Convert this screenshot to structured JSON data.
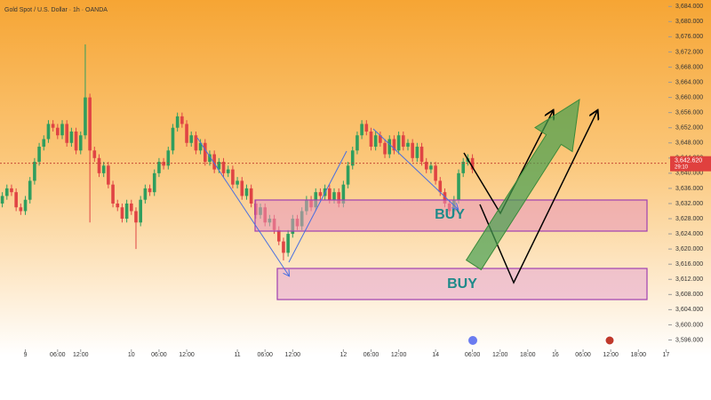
{
  "chart_data": {
    "type": "candlestick",
    "title": "Gold Spot / U.S. Dollar · 1h · OANDA",
    "annotations": {
      "current_price": "3,642.620",
      "countdown": "29:10",
      "buy_upper": "BUY",
      "buy_lower": "BUY"
    },
    "current_price": 3642.62,
    "up_color": "#2f9e5e",
    "down_color": "#e04444",
    "open": [
      3632,
      3634,
      3636,
      3635,
      3631,
      3630,
      3633,
      3638,
      3643,
      3647,
      3649,
      3653,
      3652,
      3650,
      3653,
      3648,
      3651,
      3646,
      3650,
      3660,
      3646,
      3644,
      3640,
      3642,
      3637,
      3632,
      3631,
      3628,
      3632,
      3630,
      3627,
      3633,
      3636,
      3635,
      3640,
      3643,
      3642,
      3646,
      3652,
      3655,
      3653,
      3648,
      3650,
      3646,
      3648,
      3643,
      3645,
      3641,
      3643,
      3640,
      3641,
      3637,
      3638,
      3634,
      3636,
      3632,
      3629,
      3631,
      3627,
      3628,
      3625,
      3622,
      3619,
      3624,
      3628,
      3626,
      3630,
      3633,
      3631,
      3635,
      3634,
      3636,
      3633,
      3635,
      3632,
      3637,
      3642,
      3646,
      3650,
      3653,
      3651,
      3647,
      3650,
      3648,
      3645,
      3649,
      3646,
      3650,
      3647,
      3648,
      3644,
      3647,
      3643,
      3641,
      3642,
      3638,
      3635,
      3632,
      3630,
      3633,
      3640,
      3643,
      3644
    ],
    "high": [
      3635,
      3637,
      3637,
      3636,
      3632,
      3634,
      3639,
      3644,
      3648,
      3650,
      3654,
      3654,
      3653,
      3654,
      3654,
      3652,
      3652,
      3651,
      3674,
      3661,
      3647,
      3645,
      3643,
      3643,
      3638,
      3633,
      3632,
      3633,
      3633,
      3631,
      3634,
      3637,
      3637,
      3641,
      3644,
      3644,
      3647,
      3653,
      3656,
      3656,
      3654,
      3651,
      3651,
      3649,
      3649,
      3646,
      3646,
      3644,
      3644,
      3642,
      3642,
      3639,
      3639,
      3637,
      3637,
      3633,
      3632,
      3632,
      3629,
      3629,
      3626,
      3623,
      3625,
      3629,
      3629,
      3631,
      3634,
      3634,
      3636,
      3636,
      3637,
      3637,
      3636,
      3636,
      3638,
      3643,
      3647,
      3651,
      3654,
      3654,
      3652,
      3651,
      3651,
      3649,
      3650,
      3650,
      3651,
      3651,
      3649,
      3649,
      3648,
      3648,
      3644,
      3643,
      3643,
      3639,
      3636,
      3633,
      3634,
      3641,
      3644,
      3645,
      3645
    ],
    "low": [
      3631,
      3633,
      3634,
      3630,
      3629,
      3629,
      3632,
      3637,
      3642,
      3646,
      3648,
      3651,
      3649,
      3649,
      3647,
      3647,
      3645,
      3645,
      3649,
      3627,
      3643,
      3639,
      3639,
      3636,
      3631,
      3630,
      3627,
      3627,
      3629,
      3620,
      3626,
      3632,
      3634,
      3634,
      3639,
      3641,
      3641,
      3645,
      3651,
      3652,
      3647,
      3647,
      3645,
      3645,
      3642,
      3642,
      3640,
      3640,
      3639,
      3639,
      3636,
      3636,
      3633,
      3633,
      3631,
      3628,
      3628,
      3626,
      3626,
      3624,
      3621,
      3617,
      3618,
      3623,
      3625,
      3625,
      3629,
      3630,
      3630,
      3633,
      3633,
      3632,
      3632,
      3631,
      3631,
      3636,
      3641,
      3645,
      3649,
      3650,
      3646,
      3646,
      3647,
      3644,
      3644,
      3645,
      3645,
      3646,
      3646,
      3643,
      3643,
      3642,
      3640,
      3640,
      3637,
      3634,
      3631,
      3629,
      3629,
      3632,
      3639,
      3642,
      3640
    ],
    "close": [
      3634,
      3636,
      3635,
      3631,
      3630,
      3633,
      3638,
      3643,
      3647,
      3649,
      3653,
      3652,
      3650,
      3653,
      3648,
      3651,
      3646,
      3650,
      3660,
      3646,
      3644,
      3640,
      3642,
      3637,
      3632,
      3631,
      3628,
      3632,
      3630,
      3627,
      3633,
      3636,
      3635,
      3640,
      3643,
      3642,
      3646,
      3652,
      3655,
      3653,
      3648,
      3650,
      3646,
      3648,
      3643,
      3645,
      3641,
      3643,
      3640,
      3641,
      3637,
      3638,
      3634,
      3636,
      3632,
      3629,
      3631,
      3627,
      3628,
      3625,
      3622,
      3619,
      3624,
      3628,
      3626,
      3630,
      3633,
      3631,
      3635,
      3634,
      3636,
      3633,
      3635,
      3632,
      3637,
      3642,
      3646,
      3650,
      3653,
      3651,
      3647,
      3650,
      3648,
      3645,
      3649,
      3646,
      3650,
      3647,
      3648,
      3644,
      3647,
      3643,
      3641,
      3642,
      3638,
      3635,
      3632,
      3630,
      3633,
      3640,
      3643,
      3644,
      3641
    ],
    "xlim": [
      -0.5,
      144.5
    ],
    "xticks": [
      {
        "value": 5,
        "label": "9"
      },
      {
        "value": 12,
        "label": "06:00"
      },
      {
        "value": 17,
        "label": "12:00"
      },
      {
        "value": 28,
        "label": "10"
      },
      {
        "value": 34,
        "label": "06:00"
      },
      {
        "value": 40,
        "label": "12:00"
      },
      {
        "value": 51,
        "label": "11"
      },
      {
        "value": 57,
        "label": "06:00"
      },
      {
        "value": 63,
        "label": "12:00"
      },
      {
        "value": 74,
        "label": "12"
      },
      {
        "value": 80,
        "label": "06:00"
      },
      {
        "value": 86,
        "label": "12:00"
      },
      {
        "value": 94,
        "label": "14"
      },
      {
        "value": 102,
        "label": "06:00"
      },
      {
        "value": 108,
        "label": "12:00"
      },
      {
        "value": 114,
        "label": "18:00"
      },
      {
        "value": 120,
        "label": "16"
      },
      {
        "value": 126,
        "label": "06:00"
      },
      {
        "value": 132,
        "label": "12:00"
      },
      {
        "value": 138,
        "label": "18:00"
      },
      {
        "value": 144,
        "label": "17"
      }
    ],
    "ylim": [
      3594,
      3685
    ],
    "yticks": [
      {
        "value": 3596,
        "label": "3,596.000"
      },
      {
        "value": 3600,
        "label": "3,600.000"
      },
      {
        "value": 3604,
        "label": "3,604.000"
      },
      {
        "value": 3608,
        "label": "3,608.000"
      },
      {
        "value": 3612,
        "label": "3,612.000"
      },
      {
        "value": 3616,
        "label": "3,616.000"
      },
      {
        "value": 3620,
        "label": "3,620.000"
      },
      {
        "value": 3624,
        "label": "3,624.000"
      },
      {
        "value": 3628,
        "label": "3,628.000"
      },
      {
        "value": 3632,
        "label": "3,632.000"
      },
      {
        "value": 3636,
        "label": "3,636.000"
      },
      {
        "value": 3640,
        "label": "3,640.000"
      },
      {
        "value": 3644,
        "label": "3,644.000"
      },
      {
        "value": 3648,
        "label": "3,648.000"
      },
      {
        "value": 3652,
        "label": "3,652.000"
      },
      {
        "value": 3656,
        "label": "3,656.000"
      },
      {
        "value": 3660,
        "label": "3,660.000"
      },
      {
        "value": 3664,
        "label": "3,664.000"
      },
      {
        "value": 3668,
        "label": "3,668.000"
      },
      {
        "value": 3672,
        "label": "3,672.000"
      },
      {
        "value": 3676,
        "label": "3,676.000"
      },
      {
        "value": 3680,
        "label": "3,680.000"
      },
      {
        "value": 3684,
        "label": "3,684.000"
      }
    ]
  }
}
